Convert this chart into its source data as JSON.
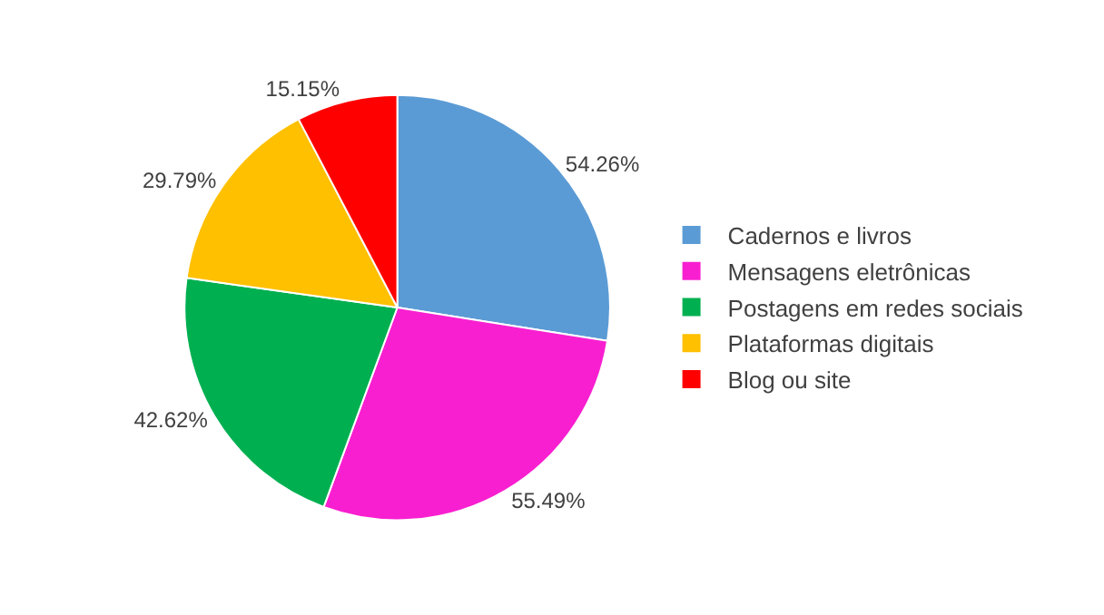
{
  "chart_data": {
    "type": "pie",
    "categories": [
      "Cadernos e livros",
      "Mensagens eletrônicas",
      "Postagens em redes sociais",
      "Plataformas digitais",
      "Blog ou site"
    ],
    "values": [
      54.26,
      55.49,
      42.62,
      29.79,
      15.15
    ],
    "value_labels": [
      "54.26%",
      "55.49%",
      "42.62%",
      "29.79%",
      "15.15%"
    ],
    "colors": [
      "#5b9bd5",
      "#f81fd0",
      "#00b050",
      "#ffc000",
      "#ff0000"
    ],
    "legend": "right"
  }
}
